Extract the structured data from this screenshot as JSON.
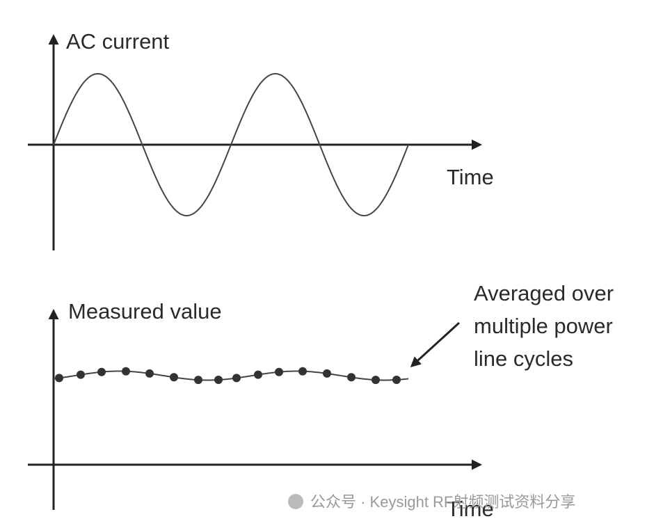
{
  "top_plot": {
    "y_label": "AC current",
    "x_label": "Time"
  },
  "bottom_plot": {
    "y_label": "Measured value",
    "x_label": "Time",
    "annotation": [
      "Averaged over",
      "multiple power",
      "line cycles"
    ]
  },
  "watermark": "公众号 · Keysight RF射频测试资料分享"
}
